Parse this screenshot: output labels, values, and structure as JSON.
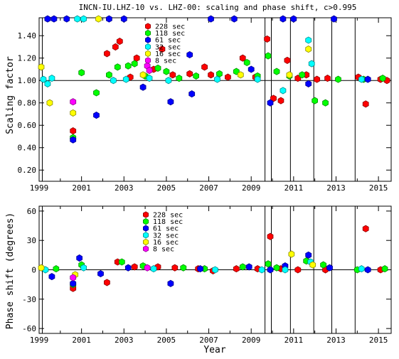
{
  "chart_data": [
    {
      "type": "scatter",
      "title": "INCN-IU.LHZ-10 vs. LHZ-00: scaling and phase shift, c>0.995",
      "xlabel": "",
      "ylabel": "Scaling factor",
      "xlim": [
        1999.0,
        2015.6
      ],
      "ylim": [
        0.1,
        1.56
      ],
      "reference_line": 1.0,
      "xticks": [
        1999,
        2001,
        2003,
        2005,
        2007,
        2009,
        2011,
        2013,
        2015
      ],
      "yticks": [
        0.2,
        0.4,
        0.6,
        0.8,
        1.0,
        1.2,
        1.4
      ],
      "ytick_labels": [
        "0.20",
        "0.40",
        "0.60",
        "0.80",
        "1.00",
        "1.20",
        "1.40"
      ],
      "vertical_lines": [
        1999.15,
        2009.65,
        2009.95,
        2010.85,
        2011.95,
        2012.8,
        2013.9
      ],
      "legend_position": "top-center",
      "series": [
        {
          "name": "228 sec",
          "color": "#ff0000",
          "points": [
            [
              2000.6,
              0.55
            ],
            [
              2002.2,
              1.24
            ],
            [
              2002.6,
              1.3
            ],
            [
              2002.8,
              1.35
            ],
            [
              2003.3,
              1.03
            ],
            [
              2003.6,
              1.2
            ],
            [
              2004.4,
              1.1
            ],
            [
              2004.8,
              1.28
            ],
            [
              2005.3,
              1.05
            ],
            [
              2006.1,
              1.06
            ],
            [
              2006.8,
              1.12
            ],
            [
              2007.1,
              1.05
            ],
            [
              2007.9,
              1.03
            ],
            [
              2008.6,
              1.2
            ],
            [
              2009.2,
              1.03
            ],
            [
              2009.75,
              1.37
            ],
            [
              2010.05,
              0.84
            ],
            [
              2010.4,
              0.82
            ],
            [
              2010.7,
              1.18
            ],
            [
              2011.2,
              1.02
            ],
            [
              2011.6,
              1.05
            ],
            [
              2012.1,
              1.01
            ],
            [
              2012.6,
              1.02
            ],
            [
              2014.05,
              1.03
            ],
            [
              2014.4,
              0.79
            ],
            [
              2015.1,
              1.01
            ],
            [
              2015.4,
              1.0
            ]
          ]
        },
        {
          "name": "118 sec",
          "color": "#00ff00",
          "points": [
            [
              2000.6,
              0.49
            ],
            [
              2001.0,
              1.07
            ],
            [
              2001.7,
              0.89
            ],
            [
              2002.3,
              1.05
            ],
            [
              2002.7,
              1.12
            ],
            [
              2003.2,
              1.13
            ],
            [
              2003.5,
              1.15
            ],
            [
              2004.0,
              1.04
            ],
            [
              2004.6,
              1.11
            ],
            [
              2005.0,
              1.08
            ],
            [
              2005.6,
              1.02
            ],
            [
              2006.4,
              1.04
            ],
            [
              2007.5,
              1.06
            ],
            [
              2008.3,
              1.08
            ],
            [
              2008.8,
              1.16
            ],
            [
              2009.3,
              1.04
            ],
            [
              2009.8,
              1.22
            ],
            [
              2010.2,
              1.08
            ],
            [
              2010.8,
              1.04
            ],
            [
              2011.4,
              1.05
            ],
            [
              2012.0,
              0.82
            ],
            [
              2012.5,
              0.8
            ],
            [
              2013.1,
              1.01
            ],
            [
              2014.3,
              1.01
            ],
            [
              2015.2,
              1.02
            ]
          ]
        },
        {
          "name": "61 sec",
          "color": "#0000ff",
          "points": [
            [
              1999.4,
              1.55
            ],
            [
              1999.7,
              1.55
            ],
            [
              2000.3,
              1.55
            ],
            [
              2000.6,
              0.47
            ],
            [
              2001.7,
              0.69
            ],
            [
              2002.3,
              1.55
            ],
            [
              2003.0,
              1.55
            ],
            [
              2003.9,
              0.94
            ],
            [
              2005.2,
              0.81
            ],
            [
              2006.1,
              1.23
            ],
            [
              2006.2,
              0.88
            ],
            [
              2007.1,
              1.55
            ],
            [
              2008.2,
              1.55
            ],
            [
              2009.0,
              1.1
            ],
            [
              2009.9,
              0.8
            ],
            [
              2010.5,
              1.55
            ],
            [
              2011.0,
              1.55
            ],
            [
              2011.7,
              0.97
            ],
            [
              2012.9,
              1.55
            ],
            [
              2014.5,
              1.01
            ]
          ]
        },
        {
          "name": "32 sec",
          "color": "#00ffff",
          "points": [
            [
              1999.2,
              1.01
            ],
            [
              1999.4,
              0.97
            ],
            [
              1999.6,
              1.02
            ],
            [
              2000.8,
              1.55
            ],
            [
              2001.1,
              1.55
            ],
            [
              2002.5,
              1.0
            ],
            [
              2003.1,
              1.01
            ],
            [
              2004.2,
              1.02
            ],
            [
              2005.1,
              1.0
            ],
            [
              2007.4,
              1.01
            ],
            [
              2009.3,
              1.01
            ],
            [
              2010.5,
              0.91
            ],
            [
              2011.7,
              1.36
            ],
            [
              2011.85,
              1.15
            ],
            [
              2014.2,
              1.01
            ]
          ]
        },
        {
          "name": "16 sec",
          "color": "#ffff00",
          "points": [
            [
              1999.1,
              1.12
            ],
            [
              1999.5,
              0.8
            ],
            [
              2000.6,
              0.71
            ],
            [
              2001.8,
              1.55
            ],
            [
              2003.9,
              1.05
            ],
            [
              2008.5,
              1.05
            ],
            [
              2010.8,
              1.05
            ],
            [
              2011.7,
              1.28
            ]
          ]
        },
        {
          "name": "8 sec",
          "color": "#ff00ff",
          "points": [
            [
              2000.6,
              0.81
            ],
            [
              2004.1,
              1.13
            ],
            [
              2004.2,
              1.09
            ]
          ]
        }
      ]
    },
    {
      "type": "scatter",
      "title": "",
      "xlabel": "Year",
      "ylabel": "Phase shift (degrees)",
      "xlim": [
        1999.0,
        2015.6
      ],
      "ylim": [
        -65,
        65
      ],
      "reference_line": 0,
      "xticks": [
        1999,
        2001,
        2003,
        2005,
        2007,
        2009,
        2011,
        2013,
        2015
      ],
      "yticks": [
        -60,
        -30,
        0,
        30,
        60
      ],
      "ytick_labels": [
        "-60",
        "-30",
        "0",
        "30",
        "60"
      ],
      "vertical_lines": [
        1999.15,
        2009.65,
        2009.95,
        2010.85,
        2011.95,
        2012.8,
        2013.9
      ],
      "legend_position": "top-center",
      "series": [
        {
          "name": "228 sec",
          "color": "#ff0000",
          "points": [
            [
              2000.6,
              -19
            ],
            [
              2002.2,
              -13
            ],
            [
              2002.7,
              8
            ],
            [
              2003.5,
              3
            ],
            [
              2004.6,
              3
            ],
            [
              2005.4,
              2
            ],
            [
              2006.5,
              1
            ],
            [
              2007.2,
              -1
            ],
            [
              2008.3,
              1
            ],
            [
              2009.3,
              1
            ],
            [
              2009.9,
              34
            ],
            [
              2010.4,
              1
            ],
            [
              2011.2,
              0
            ],
            [
              2012.5,
              0
            ],
            [
              2014.4,
              42
            ],
            [
              2015.1,
              0
            ]
          ]
        },
        {
          "name": "118 sec",
          "color": "#00ff00",
          "points": [
            [
              1999.8,
              1
            ],
            [
              2000.6,
              -15
            ],
            [
              2001.0,
              5
            ],
            [
              2002.9,
              8
            ],
            [
              2003.9,
              4
            ],
            [
              2005.8,
              2
            ],
            [
              2006.8,
              1
            ],
            [
              2008.6,
              3
            ],
            [
              2009.8,
              6
            ],
            [
              2010.2,
              2
            ],
            [
              2011.6,
              9
            ],
            [
              2012.4,
              5
            ],
            [
              2014.0,
              0
            ],
            [
              2015.3,
              1
            ]
          ]
        },
        {
          "name": "61 sec",
          "color": "#0000ff",
          "points": [
            [
              1999.6,
              -7
            ],
            [
              2000.6,
              -14
            ],
            [
              2000.9,
              12
            ],
            [
              2001.9,
              -4
            ],
            [
              2003.2,
              2
            ],
            [
              2005.2,
              -14
            ],
            [
              2006.6,
              1
            ],
            [
              2008.9,
              3
            ],
            [
              2009.9,
              0
            ],
            [
              2010.6,
              4
            ],
            [
              2011.7,
              15
            ],
            [
              2012.7,
              2
            ],
            [
              2014.5,
              0
            ]
          ]
        },
        {
          "name": "32 sec",
          "color": "#00ffff",
          "points": [
            [
              1999.3,
              0
            ],
            [
              2001.1,
              2
            ],
            [
              2004.4,
              1
            ],
            [
              2007.3,
              0
            ],
            [
              2009.5,
              0
            ],
            [
              2010.6,
              0
            ],
            [
              2011.8,
              8
            ],
            [
              2014.2,
              1
            ]
          ]
        },
        {
          "name": "16 sec",
          "color": "#ffff00",
          "points": [
            [
              1999.1,
              2
            ],
            [
              2000.7,
              -5
            ],
            [
              2010.9,
              16
            ],
            [
              2011.9,
              5
            ]
          ]
        },
        {
          "name": "8 sec",
          "color": "#ff00ff",
          "points": [
            [
              2000.6,
              -8
            ],
            [
              2004.1,
              2
            ]
          ]
        }
      ]
    }
  ]
}
